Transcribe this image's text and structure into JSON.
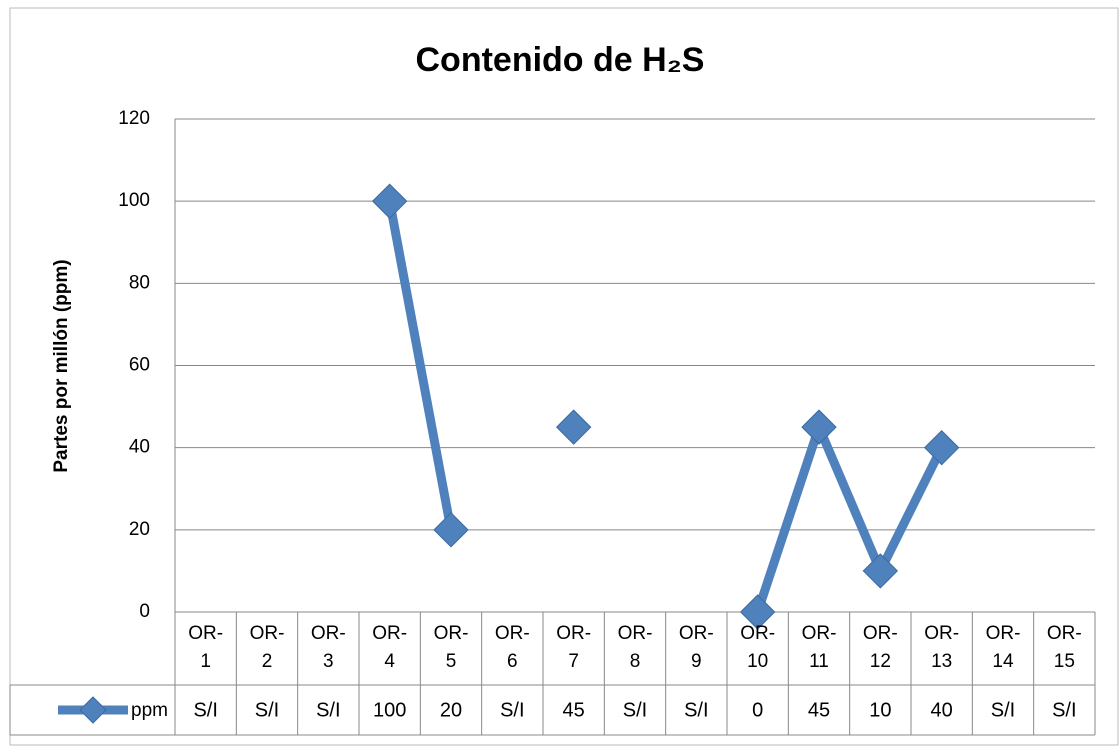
{
  "chart_data": {
    "type": "line",
    "title": "Contenido de H₂S",
    "y_label": "Partes por millón (ppm)",
    "categories": [
      "OR-1",
      "OR-2",
      "OR-3",
      "OR-4",
      "OR-5",
      "OR-6",
      "OR-7",
      "OR-8",
      "OR-9",
      "OR-10",
      "OR-11",
      "OR-12",
      "OR-13",
      "OR-14",
      "OR-15"
    ],
    "series": [
      {
        "name": "ppm",
        "color": "#4f81bd",
        "values": [
          null,
          null,
          null,
          100,
          20,
          null,
          45,
          null,
          null,
          0,
          45,
          10,
          40,
          null,
          null
        ],
        "value_labels": [
          "S/I",
          "S/I",
          "S/I",
          "100",
          "20",
          "S/I",
          "45",
          "S/I",
          "S/I",
          "0",
          "45",
          "10",
          "40",
          "S/I",
          "S/I"
        ]
      }
    ],
    "ylim": [
      0,
      120
    ],
    "yticks": [
      0,
      20,
      40,
      60,
      80,
      100,
      120
    ],
    "grid": true
  }
}
